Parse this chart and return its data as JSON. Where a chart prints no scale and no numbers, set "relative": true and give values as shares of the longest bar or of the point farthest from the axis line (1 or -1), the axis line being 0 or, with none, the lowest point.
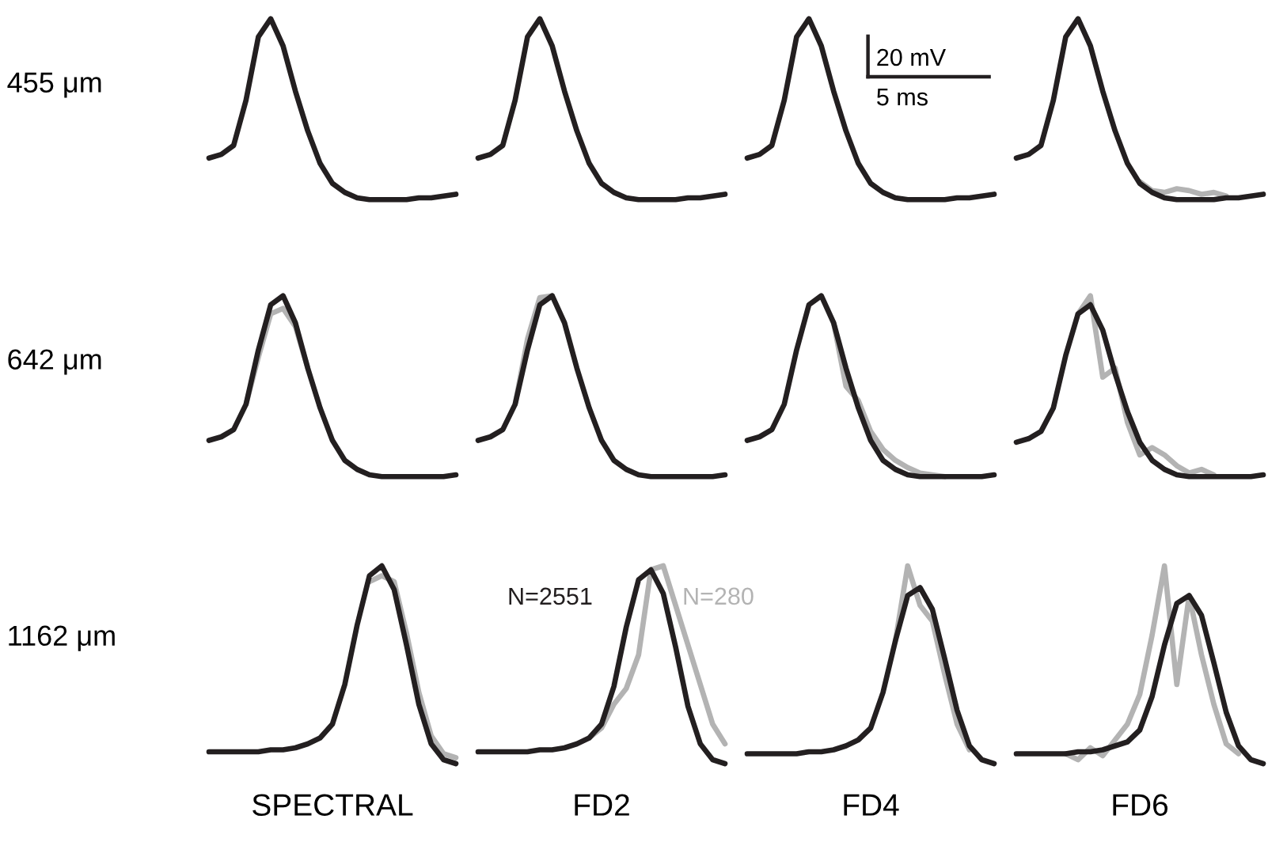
{
  "chart_data": [
    {
      "type": "line",
      "relative": true,
      "tick_labels": false,
      "ylabel": "455 μm",
      "categories": [
        null,
        null,
        null,
        null,
        null,
        null,
        null,
        null,
        null,
        null,
        null,
        null,
        null,
        null,
        null,
        null,
        null,
        null,
        null,
        null,
        null
      ],
      "series": [
        {
          "color": "#231f20",
          "values": [
            0.23,
            0.25,
            0.3,
            0.55,
            0.9,
            1,
            0.85,
            0.6,
            0.38,
            0.2,
            0.09,
            0.04,
            0.01,
            0,
            0,
            0,
            0,
            0.01,
            0.01,
            0.02,
            0.03
          ]
        }
      ]
    },
    {
      "type": "line",
      "relative": true,
      "tick_labels": false,
      "categories": [
        null,
        null,
        null,
        null,
        null,
        null,
        null,
        null,
        null,
        null,
        null,
        null,
        null,
        null,
        null,
        null,
        null,
        null,
        null,
        null,
        null
      ],
      "series": [
        {
          "color": "#231f20",
          "values": [
            0.23,
            0.25,
            0.3,
            0.55,
            0.9,
            1,
            0.85,
            0.6,
            0.38,
            0.2,
            0.09,
            0.04,
            0.01,
            0,
            0,
            0,
            0,
            0.01,
            0.01,
            0.02,
            0.03
          ]
        }
      ]
    },
    {
      "type": "line",
      "relative": true,
      "tick_labels": false,
      "annotations": [
        "20 mV",
        "5 ms"
      ],
      "categories": [
        null,
        null,
        null,
        null,
        null,
        null,
        null,
        null,
        null,
        null,
        null,
        null,
        null,
        null,
        null,
        null,
        null,
        null,
        null,
        null,
        null
      ],
      "series": [
        {
          "color": "#231f20",
          "values": [
            0.23,
            0.25,
            0.3,
            0.55,
            0.9,
            1,
            0.85,
            0.6,
            0.38,
            0.2,
            0.09,
            0.04,
            0.01,
            0,
            0,
            0,
            0,
            0.01,
            0.01,
            0.02,
            0.03
          ]
        }
      ]
    },
    {
      "type": "line",
      "relative": true,
      "tick_labels": false,
      "categories": [
        null,
        null,
        null,
        null,
        null,
        null,
        null,
        null,
        null,
        null,
        null,
        null,
        null,
        null,
        null,
        null,
        null,
        null,
        null,
        null,
        null
      ],
      "series": [
        {
          "color": "#b3b3b3",
          "values": [
            null,
            null,
            null,
            null,
            null,
            null,
            null,
            null,
            null,
            null,
            0.1,
            0.05,
            0.04,
            0.06,
            0.05,
            0.03,
            0.04,
            0.02,
            null,
            null,
            null
          ]
        },
        {
          "color": "#231f20",
          "values": [
            0.23,
            0.25,
            0.3,
            0.55,
            0.9,
            1,
            0.85,
            0.6,
            0.38,
            0.2,
            0.09,
            0.04,
            0.01,
            0,
            0,
            0,
            0,
            0.01,
            0.01,
            0.02,
            0.03
          ]
        }
      ]
    },
    {
      "type": "line",
      "relative": true,
      "tick_labels": false,
      "ylabel": "642 μm",
      "categories": [
        null,
        null,
        null,
        null,
        null,
        null,
        null,
        null,
        null,
        null,
        null,
        null,
        null,
        null,
        null,
        null,
        null,
        null,
        null,
        null,
        null
      ],
      "series": [
        {
          "color": "#b3b3b3",
          "values": [
            null,
            null,
            null,
            0.4,
            0.66,
            0.9,
            0.93,
            0.83,
            0.6,
            null,
            null,
            null,
            null,
            null,
            null,
            null,
            null,
            null,
            null,
            null,
            null
          ]
        },
        {
          "color": "#231f20",
          "values": [
            0.2,
            0.22,
            0.26,
            0.4,
            0.7,
            0.95,
            1,
            0.85,
            0.6,
            0.38,
            0.2,
            0.09,
            0.04,
            0.01,
            0,
            0,
            0,
            0,
            0,
            0,
            0.01
          ]
        }
      ]
    },
    {
      "type": "line",
      "relative": true,
      "tick_labels": false,
      "categories": [
        null,
        null,
        null,
        null,
        null,
        null,
        null,
        null,
        null,
        null,
        null,
        null,
        null,
        null,
        null,
        null,
        null,
        null,
        null,
        null,
        null
      ],
      "series": [
        {
          "color": "#b3b3b3",
          "values": [
            null,
            null,
            null,
            0.4,
            0.76,
            0.99,
            1,
            null,
            null,
            null,
            null,
            null,
            null,
            null,
            null,
            null,
            null,
            null,
            null,
            null,
            null
          ]
        },
        {
          "color": "#231f20",
          "values": [
            0.2,
            0.22,
            0.26,
            0.4,
            0.7,
            0.95,
            1,
            0.85,
            0.6,
            0.38,
            0.2,
            0.09,
            0.04,
            0.01,
            0,
            0,
            0,
            0,
            0,
            0,
            0.01
          ]
        }
      ]
    },
    {
      "type": "line",
      "relative": true,
      "tick_labels": false,
      "categories": [
        null,
        null,
        null,
        null,
        null,
        null,
        null,
        null,
        null,
        null,
        null,
        null,
        null,
        null,
        null,
        null,
        null,
        null,
        null,
        null,
        null
      ],
      "series": [
        {
          "color": "#b3b3b3",
          "values": [
            null,
            null,
            null,
            null,
            null,
            null,
            null,
            0.85,
            0.5,
            0.42,
            0.25,
            0.15,
            0.09,
            0.05,
            0.02,
            0.01,
            0,
            null,
            null,
            null,
            null
          ]
        },
        {
          "color": "#231f20",
          "values": [
            0.2,
            0.22,
            0.26,
            0.4,
            0.7,
            0.95,
            1,
            0.85,
            0.6,
            0.38,
            0.2,
            0.09,
            0.04,
            0.01,
            0,
            0,
            0,
            0,
            0,
            0,
            0.01
          ]
        }
      ]
    },
    {
      "type": "line",
      "relative": true,
      "tick_labels": false,
      "categories": [
        null,
        null,
        null,
        null,
        null,
        null,
        null,
        null,
        null,
        null,
        null,
        null,
        null,
        null,
        null,
        null,
        null,
        null,
        null,
        null,
        null
      ],
      "series": [
        {
          "color": "#b3b3b3",
          "values": [
            null,
            null,
            null,
            null,
            null,
            0.9,
            1,
            0.55,
            0.6,
            0.3,
            0.12,
            0.16,
            0.12,
            0.06,
            0.02,
            0.04,
            0.01,
            null,
            null,
            null,
            null
          ]
        },
        {
          "color": "#231f20",
          "values": [
            0.19,
            0.21,
            0.25,
            0.38,
            0.67,
            0.9,
            0.95,
            0.81,
            0.57,
            0.36,
            0.19,
            0.09,
            0.04,
            0.01,
            0,
            0,
            0,
            0,
            0,
            0,
            0.01
          ]
        }
      ]
    },
    {
      "type": "line",
      "relative": true,
      "tick_labels": false,
      "ylabel": "1162 μm",
      "xlabel": "SPECTRAL",
      "categories": [
        null,
        null,
        null,
        null,
        null,
        null,
        null,
        null,
        null,
        null,
        null,
        null,
        null,
        null,
        null,
        null,
        null,
        null,
        null,
        null,
        null
      ],
      "series": [
        {
          "color": "#b3b3b3",
          "values": [
            null,
            null,
            null,
            null,
            null,
            null,
            null,
            null,
            null,
            null,
            null,
            null,
            null,
            0.92,
            0.95,
            0.92,
            0.66,
            0.36,
            0.14,
            0.05,
            0.03
          ]
        },
        {
          "color": "#231f20",
          "values": [
            0.06,
            0.06,
            0.06,
            0.06,
            0.06,
            0.07,
            0.07,
            0.08,
            0.1,
            0.13,
            0.2,
            0.4,
            0.7,
            0.95,
            1,
            0.88,
            0.6,
            0.3,
            0.1,
            0.02,
            0
          ]
        }
      ]
    },
    {
      "type": "line",
      "relative": true,
      "tick_labels": false,
      "xlabel": "FD2",
      "categories": [
        null,
        null,
        null,
        null,
        null,
        null,
        null,
        null,
        null,
        null,
        null,
        null,
        null,
        null,
        null,
        null,
        null,
        null,
        null,
        null,
        null
      ],
      "series": [
        {
          "name": "N=280",
          "color": "#b3b3b3",
          "values": [
            null,
            null,
            null,
            null,
            null,
            null,
            null,
            null,
            null,
            0.13,
            0.18,
            0.3,
            0.38,
            0.55,
            0.98,
            1,
            0.8,
            0.6,
            0.4,
            0.2,
            0.1
          ]
        },
        {
          "name": "N=2551",
          "color": "#231f20",
          "values": [
            0.06,
            0.06,
            0.06,
            0.06,
            0.06,
            0.07,
            0.07,
            0.08,
            0.1,
            0.13,
            0.2,
            0.39,
            0.69,
            0.93,
            0.98,
            0.86,
            0.59,
            0.29,
            0.1,
            0.02,
            0
          ]
        }
      ]
    },
    {
      "type": "line",
      "relative": true,
      "tick_labels": false,
      "xlabel": "FD4",
      "categories": [
        null,
        null,
        null,
        null,
        null,
        null,
        null,
        null,
        null,
        null,
        null,
        null,
        null,
        null,
        null,
        null,
        null,
        null,
        null,
        null,
        null
      ],
      "series": [
        {
          "color": "#b3b3b3",
          "values": [
            null,
            null,
            null,
            null,
            null,
            null,
            null,
            null,
            null,
            null,
            null,
            null,
            0.62,
            1,
            0.8,
            0.72,
            0.45,
            0.2,
            0.07,
            null,
            null
          ]
        },
        {
          "color": "#231f20",
          "values": [
            0.05,
            0.05,
            0.05,
            0.05,
            0.05,
            0.06,
            0.06,
            0.07,
            0.09,
            0.12,
            0.18,
            0.36,
            0.62,
            0.85,
            0.89,
            0.78,
            0.53,
            0.27,
            0.09,
            0.02,
            0
          ]
        }
      ]
    },
    {
      "type": "line",
      "relative": true,
      "tick_labels": false,
      "xlabel": "FD6",
      "categories": [
        null,
        null,
        null,
        null,
        null,
        null,
        null,
        null,
        null,
        null,
        null,
        null,
        null,
        null,
        null,
        null,
        null,
        null,
        null,
        null,
        null
      ],
      "series": [
        {
          "color": "#b3b3b3",
          "values": [
            null,
            null,
            null,
            null,
            0.05,
            0.02,
            0.08,
            0.04,
            0.12,
            0.2,
            0.35,
            0.65,
            1,
            0.4,
            0.85,
            0.55,
            0.3,
            0.1,
            0.05,
            null,
            null
          ]
        },
        {
          "color": "#231f20",
          "values": [
            0.05,
            0.05,
            0.05,
            0.05,
            0.05,
            0.06,
            0.06,
            0.07,
            0.09,
            0.11,
            0.17,
            0.34,
            0.6,
            0.81,
            0.85,
            0.75,
            0.51,
            0.26,
            0.09,
            0.02,
            0
          ]
        }
      ]
    }
  ]
}
